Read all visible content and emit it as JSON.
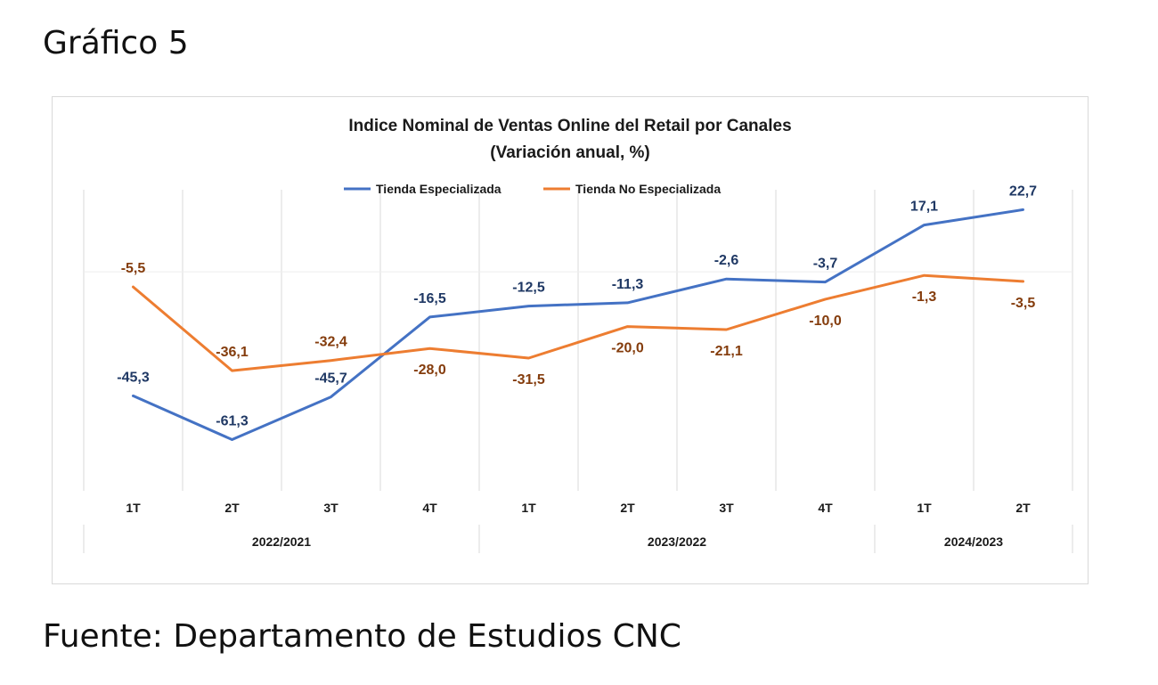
{
  "page": {
    "heading": "Gráfico 5",
    "source": "Fuente: Departamento de Estudios CNC"
  },
  "colors": {
    "series_blue": "#4472c4",
    "series_orange": "#ed7d31",
    "label_blue": "#1f3864",
    "label_orange": "#843c0c",
    "grid": "#d9d9d9"
  },
  "chart_data": {
    "type": "line",
    "title": "Indice Nominal de Ventas Online del Retail por Canales",
    "subtitle": "(Variación  anual, %)",
    "categories": [
      "1T",
      "2T",
      "3T",
      "4T",
      "1T",
      "2T",
      "3T",
      "4T",
      "1T",
      "2T"
    ],
    "category_groups": [
      {
        "label": "2022/2021",
        "span": 4
      },
      {
        "label": "2023/2022",
        "span": 4
      },
      {
        "label": "2024/2023",
        "span": 2
      }
    ],
    "series": [
      {
        "name": "Tienda Especializada",
        "color": "#4472c4",
        "values": [
          -45.3,
          -61.3,
          -45.7,
          -16.5,
          -12.5,
          -11.3,
          -2.6,
          -3.7,
          17.1,
          22.7
        ],
        "labels": [
          "-45,3",
          "-61,3",
          "-45,7",
          "-16,5",
          "-12,5",
          "-11,3",
          "-2,6",
          "-3,7",
          "17,1",
          "22,7"
        ]
      },
      {
        "name": "Tienda No Especializada",
        "color": "#ed7d31",
        "values": [
          -5.5,
          -36.1,
          -32.4,
          -28.0,
          -31.5,
          -20.0,
          -21.1,
          -10.0,
          -1.3,
          -3.5
        ],
        "labels": [
          "-5,5",
          "-36,1",
          "-32,4",
          "-28,0",
          "-31,5",
          "-20,0",
          "-21,1",
          "-10,0",
          "-1,3",
          "-3,5"
        ]
      }
    ],
    "ylim": [
      -80,
      30
    ],
    "legend": "top",
    "grid": "vertical"
  }
}
